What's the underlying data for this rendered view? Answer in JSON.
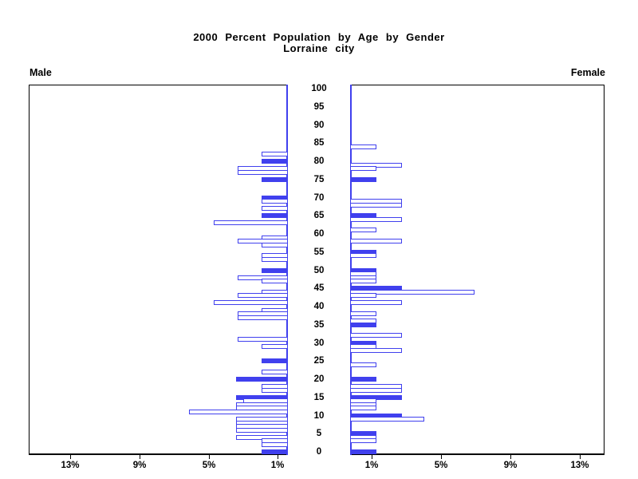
{
  "title": {
    "line1": "2000 Percent Population by Age by Gender",
    "line2": "Lorraine city"
  },
  "side_labels": {
    "male": "Male",
    "female": "Female"
  },
  "axis": {
    "age_tick_labels": [
      "0",
      "5",
      "10",
      "15",
      "20",
      "25",
      "30",
      "35",
      "40",
      "45",
      "50",
      "55",
      "60",
      "65",
      "70",
      "75",
      "80",
      "85",
      "90",
      "95",
      "100"
    ],
    "pct_tick_values": [
      1,
      5,
      9,
      13
    ],
    "pct_tick_labels": [
      "1%",
      "5%",
      "9%",
      "13%"
    ]
  },
  "colors": {
    "bar_blue": "#4040ee",
    "axis_black": "#000000",
    "background": "#ffffff"
  },
  "chart_data": {
    "type": "bar",
    "variant": "population-pyramid",
    "title": "2000 Percent Population by Age by Gender",
    "subtitle": "Lorraine city",
    "unit": "percent of total population per single year of age",
    "x_axis": {
      "tick_values_percent": [
        1,
        5,
        9,
        13
      ],
      "max_percent": 14.8,
      "male_axis_direction": "right-to-left",
      "female_axis_direction": "left-to-right"
    },
    "y_axis": {
      "tick_values": [
        0,
        5,
        10,
        15,
        20,
        25,
        30,
        35,
        40,
        45,
        50,
        55,
        60,
        65,
        70,
        75,
        80,
        85,
        90,
        95,
        100
      ],
      "range": [
        0,
        100
      ]
    },
    "highlight_rule": "ages divisible by 5 are drawn as solid blue bars; all other ages are hollow (white with blue outline); missing ages have zero population",
    "series": [
      {
        "name": "Male",
        "bars": [
          {
            "age": 82,
            "pct": 1.5,
            "filled": false
          },
          {
            "age": 80,
            "pct": 1.5,
            "filled": true
          },
          {
            "age": 78,
            "pct": 2.9,
            "filled": false
          },
          {
            "age": 77,
            "pct": 2.9,
            "filled": false
          },
          {
            "age": 75,
            "pct": 1.5,
            "filled": true
          },
          {
            "age": 70,
            "pct": 1.5,
            "filled": true
          },
          {
            "age": 69,
            "pct": 1.5,
            "filled": false
          },
          {
            "age": 67,
            "pct": 1.5,
            "filled": false
          },
          {
            "age": 65,
            "pct": 1.5,
            "filled": true
          },
          {
            "age": 63,
            "pct": 4.3,
            "filled": false
          },
          {
            "age": 59,
            "pct": 1.5,
            "filled": false
          },
          {
            "age": 58,
            "pct": 2.9,
            "filled": false
          },
          {
            "age": 57,
            "pct": 1.5,
            "filled": false
          },
          {
            "age": 54,
            "pct": 1.5,
            "filled": false
          },
          {
            "age": 53,
            "pct": 1.5,
            "filled": false
          },
          {
            "age": 50,
            "pct": 1.5,
            "filled": true
          },
          {
            "age": 48,
            "pct": 2.9,
            "filled": false
          },
          {
            "age": 47,
            "pct": 1.5,
            "filled": false
          },
          {
            "age": 44,
            "pct": 1.5,
            "filled": false
          },
          {
            "age": 43,
            "pct": 2.9,
            "filled": false
          },
          {
            "age": 41,
            "pct": 4.3,
            "filled": false
          },
          {
            "age": 39,
            "pct": 1.5,
            "filled": false
          },
          {
            "age": 38,
            "pct": 2.9,
            "filled": false
          },
          {
            "age": 37,
            "pct": 2.9,
            "filled": false
          },
          {
            "age": 31,
            "pct": 2.9,
            "filled": false
          },
          {
            "age": 29,
            "pct": 1.5,
            "filled": false
          },
          {
            "age": 25,
            "pct": 1.5,
            "filled": true
          },
          {
            "age": 22,
            "pct": 1.5,
            "filled": false
          },
          {
            "age": 20,
            "pct": 3.0,
            "filled": true
          },
          {
            "age": 18,
            "pct": 1.5,
            "filled": false
          },
          {
            "age": 17,
            "pct": 1.5,
            "filled": false
          },
          {
            "age": 15,
            "pct": 3.0,
            "filled": true
          },
          {
            "age": 14,
            "pct": 2.6,
            "filled": false
          },
          {
            "age": 13,
            "pct": 3.0,
            "filled": false
          },
          {
            "age": 12,
            "pct": 3.0,
            "filled": false
          },
          {
            "age": 11,
            "pct": 5.7,
            "filled": false
          },
          {
            "age": 9,
            "pct": 3.0,
            "filled": false
          },
          {
            "age": 8,
            "pct": 3.0,
            "filled": false
          },
          {
            "age": 7,
            "pct": 3.0,
            "filled": false
          },
          {
            "age": 6,
            "pct": 3.0,
            "filled": false
          },
          {
            "age": 4,
            "pct": 3.0,
            "filled": false
          },
          {
            "age": 3,
            "pct": 1.5,
            "filled": false
          },
          {
            "age": 2,
            "pct": 1.5,
            "filled": false
          },
          {
            "age": 0,
            "pct": 1.5,
            "filled": true
          }
        ]
      },
      {
        "name": "Female",
        "bars": [
          {
            "age": 84,
            "pct": 1.5,
            "filled": false
          },
          {
            "age": 79,
            "pct": 3.0,
            "filled": false
          },
          {
            "age": 78,
            "pct": 1.5,
            "filled": false
          },
          {
            "age": 75,
            "pct": 1.5,
            "filled": true
          },
          {
            "age": 69,
            "pct": 3.0,
            "filled": false
          },
          {
            "age": 68,
            "pct": 3.0,
            "filled": false
          },
          {
            "age": 65,
            "pct": 1.5,
            "filled": true
          },
          {
            "age": 64,
            "pct": 3.0,
            "filled": false
          },
          {
            "age": 61,
            "pct": 1.5,
            "filled": false
          },
          {
            "age": 58,
            "pct": 3.0,
            "filled": false
          },
          {
            "age": 55,
            "pct": 1.5,
            "filled": true
          },
          {
            "age": 54,
            "pct": 1.5,
            "filled": false
          },
          {
            "age": 50,
            "pct": 1.5,
            "filled": true
          },
          {
            "age": 49,
            "pct": 1.5,
            "filled": false
          },
          {
            "age": 48,
            "pct": 1.5,
            "filled": false
          },
          {
            "age": 47,
            "pct": 1.5,
            "filled": false
          },
          {
            "age": 45,
            "pct": 3.0,
            "filled": true
          },
          {
            "age": 44,
            "pct": 7.2,
            "filled": false
          },
          {
            "age": 43,
            "pct": 1.5,
            "filled": false
          },
          {
            "age": 41,
            "pct": 3.0,
            "filled": false
          },
          {
            "age": 38,
            "pct": 1.5,
            "filled": false
          },
          {
            "age": 36,
            "pct": 1.5,
            "filled": false
          },
          {
            "age": 35,
            "pct": 1.5,
            "filled": true
          },
          {
            "age": 32,
            "pct": 3.0,
            "filled": false
          },
          {
            "age": 30,
            "pct": 1.5,
            "filled": true
          },
          {
            "age": 29,
            "pct": 1.5,
            "filled": false
          },
          {
            "age": 28,
            "pct": 3.0,
            "filled": false
          },
          {
            "age": 24,
            "pct": 1.5,
            "filled": false
          },
          {
            "age": 20,
            "pct": 1.5,
            "filled": true
          },
          {
            "age": 18,
            "pct": 3.0,
            "filled": false
          },
          {
            "age": 17,
            "pct": 3.0,
            "filled": false
          },
          {
            "age": 15,
            "pct": 3.0,
            "filled": true
          },
          {
            "age": 14,
            "pct": 1.5,
            "filled": false
          },
          {
            "age": 13,
            "pct": 1.5,
            "filled": false
          },
          {
            "age": 12,
            "pct": 1.5,
            "filled": false
          },
          {
            "age": 10,
            "pct": 3.0,
            "filled": true
          },
          {
            "age": 9,
            "pct": 4.3,
            "filled": false
          },
          {
            "age": 5,
            "pct": 1.5,
            "filled": true
          },
          {
            "age": 4,
            "pct": 1.5,
            "filled": false
          },
          {
            "age": 3,
            "pct": 1.5,
            "filled": false
          },
          {
            "age": 0,
            "pct": 1.5,
            "filled": true
          }
        ]
      }
    ]
  }
}
